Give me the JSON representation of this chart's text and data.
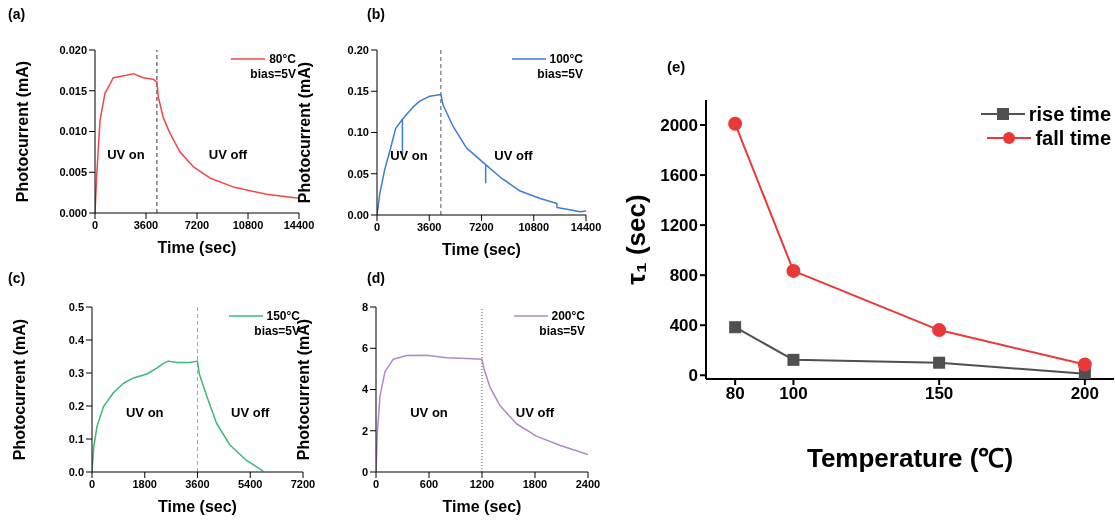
{
  "chart_data": [
    {
      "type": "line",
      "title": "(a)",
      "xlabel": "Time (sec)",
      "ylabel": "Photocurrent (mA)",
      "legend": "top right",
      "series": [
        {
          "name": "80°C",
          "color": "#f04848",
          "x": [
            0,
            117,
            352,
            705,
            1057,
            1292,
            2231,
            2701,
            3406,
            4110,
            4370,
            4463,
            4815,
            5285,
            5990,
            6930,
            8104,
            9749,
            12098,
            14400
          ],
          "values": [
            0,
            0.0045,
            0.0113,
            0.0147,
            0.0158,
            0.0166,
            0.0169,
            0.0171,
            0.0166,
            0.0164,
            0.0161,
            0.0143,
            0.0117,
            0.0098,
            0.0075,
            0.0057,
            0.0043,
            0.0032,
            0.0023,
            0.0018
          ]
        }
      ],
      "xlim": [
        0,
        14400
      ],
      "xticks": [
        0,
        3600,
        7200,
        10800,
        14400
      ],
      "ylim": [
        0,
        0.02
      ],
      "yticks": [
        {
          "value": 0,
          "label": "0.000"
        },
        {
          "value": 0.005,
          "label": "0.005"
        },
        {
          "value": 0.01,
          "label": "0.010"
        },
        {
          "value": 0.015,
          "label": "0.015"
        },
        {
          "value": 0.02,
          "label": "0.020"
        }
      ],
      "ref_lines": [
        {
          "axis": "x",
          "value": 4370,
          "color": "#333333",
          "line_style": "dashed"
        }
      ],
      "annotations": [
        "bias=5V",
        "UV on",
        "UV off"
      ]
    },
    {
      "type": "line",
      "title": "(b)",
      "xlabel": "Time (sec)",
      "ylabel": "Photocurrent (mA)",
      "legend": "top right",
      "series": [
        {
          "name": "100°C",
          "color": "#3a7fd0",
          "x": [
            0,
            184,
            530,
            876,
            1290,
            1751,
            1751,
            1751,
            2488,
            2949,
            3640,
            4400,
            4562,
            5253,
            6175,
            7488,
            7488,
            7488,
            8479,
            9861,
            11243,
            12396,
            12396,
            13087,
            14008,
            14400
          ],
          "values": [
            0,
            0.025,
            0.055,
            0.077,
            0.105,
            0.116,
            0.074,
            0.116,
            0.131,
            0.138,
            0.144,
            0.146,
            0.133,
            0.107,
            0.081,
            0.061,
            0.039,
            0.061,
            0.046,
            0.029,
            0.02,
            0.014,
            0.009,
            0.007,
            0.004,
            0.005
          ]
        }
      ],
      "xlim": [
        0,
        14400
      ],
      "xticks": [
        0,
        3600,
        7200,
        10800,
        14400
      ],
      "ylim": [
        0,
        0.2
      ],
      "yticks": [
        {
          "value": 0,
          "label": "0.00"
        },
        {
          "value": 0.05,
          "label": "0.05"
        },
        {
          "value": 0.1,
          "label": "0.10"
        },
        {
          "value": 0.15,
          "label": "0.15"
        },
        {
          "value": 0.2,
          "label": "0.20"
        }
      ],
      "ref_lines": [
        {
          "axis": "x",
          "value": 4400,
          "color": "#555555",
          "line_style": "dashed"
        }
      ],
      "annotations": [
        "bias=5V",
        "UV on",
        "UV off"
      ]
    },
    {
      "type": "line",
      "title": "(c)",
      "xlabel": "Time (sec)",
      "ylabel": "Photocurrent (mA)",
      "legend": "top right",
      "series": [
        {
          "name": "150°C",
          "color": "#3cb878",
          "x": [
            0,
            57,
            170,
            397,
            737,
            1077,
            1418,
            1871,
            2211,
            2438,
            2608,
            2892,
            3345,
            3600,
            3663,
            3912,
            4253,
            4706,
            5273,
            5840
          ],
          "values": [
            0,
            0.073,
            0.138,
            0.199,
            0.241,
            0.269,
            0.285,
            0.297,
            0.315,
            0.329,
            0.336,
            0.332,
            0.332,
            0.336,
            0.297,
            0.231,
            0.147,
            0.082,
            0.035,
            0.003
          ]
        }
      ],
      "xlim": [
        0,
        7200
      ],
      "xticks": [
        0,
        1800,
        3600,
        5400,
        7200
      ],
      "ylim": [
        0,
        0.5
      ],
      "yticks": [
        {
          "value": 0,
          "label": "0.0"
        },
        0.1,
        0.2,
        0.3,
        0.4,
        0.5
      ],
      "ref_lines": [
        {
          "axis": "x",
          "value": 3600,
          "color": "#aaaaaa",
          "line_style": "dashed"
        }
      ],
      "annotations": [
        "bias=5V",
        "UV on",
        "UV off"
      ]
    },
    {
      "type": "line",
      "title": "(d)",
      "xlabel": "Time (sec)",
      "ylabel": "Photocurrent (mA)",
      "legend": "top right",
      "series": [
        {
          "name": "200°C",
          "color": "#b088c8",
          "x": [
            0,
            15,
            45,
            102,
            196,
            347,
            573,
            799,
            1025,
            1200,
            1221,
            1289,
            1402,
            1590,
            1816,
            2080,
            2400
          ],
          "values": [
            0,
            1.89,
            3.68,
            4.87,
            5.47,
            5.65,
            5.66,
            5.54,
            5.5,
            5.47,
            5.02,
            4.13,
            3.23,
            2.34,
            1.74,
            1.3,
            0.85
          ]
        }
      ],
      "xlim": [
        0,
        2400
      ],
      "xticks": [
        0,
        600,
        1200,
        1800,
        2400
      ],
      "ylim": [
        0,
        8
      ],
      "yticks": [
        0,
        2,
        4,
        6,
        8
      ],
      "ref_lines": [
        {
          "axis": "x",
          "value": 1200,
          "color": "#555555",
          "line_style": "dotted"
        }
      ],
      "annotations": [
        "bias=5V",
        "UV on",
        "UV off"
      ]
    },
    {
      "type": "line",
      "title": "(e)",
      "xlabel": "Temperature (℃)",
      "ylabel": "τ₁ (sec)",
      "legend": "top right",
      "series": [
        {
          "name": "rise time",
          "color": "#505050",
          "marker": "square",
          "x": [
            80,
            100,
            150,
            200
          ],
          "values": [
            384,
            123,
            100,
            11
          ]
        },
        {
          "name": "fall time",
          "color": "#e83838",
          "marker": "circle",
          "x": [
            80,
            100,
            150,
            200
          ],
          "values": [
            2010,
            834,
            361,
            86
          ]
        }
      ],
      "xlim": [
        70,
        210
      ],
      "xticks": [
        80,
        100,
        150,
        200
      ],
      "ylim": [
        -30,
        2200
      ],
      "yticks": [
        0,
        400,
        800,
        1200,
        1600,
        2000
      ]
    }
  ]
}
